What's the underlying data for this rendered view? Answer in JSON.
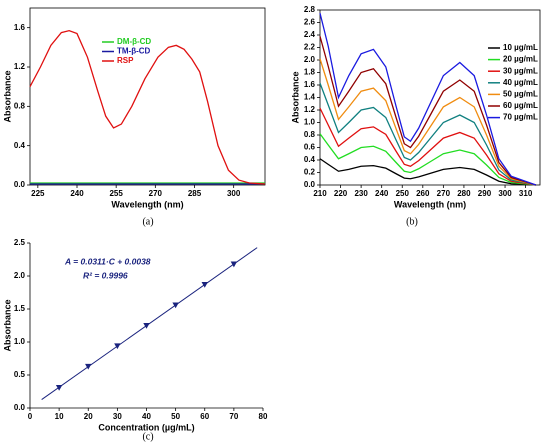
{
  "chart_data": [
    {
      "type": "line",
      "caption": "(a)",
      "xlabel": "Wavelength (nm)",
      "ylabel": "Absorbance",
      "xlim": [
        222,
        312
      ],
      "xticks": [
        225,
        240,
        255,
        270,
        285,
        300
      ],
      "ylim": [
        0,
        1.8
      ],
      "yticks": [
        {
          "value": 0,
          "label": "0.0"
        },
        0.4,
        0.8,
        1.2,
        1.6
      ],
      "legend": "upper right",
      "series": [
        {
          "name": "DM-β-CD",
          "color": "#22cc22",
          "x": [
            222,
            312
          ],
          "values": [
            0.02,
            0.02
          ]
        },
        {
          "name": "TM-β-CD",
          "color": "#1a1aa0",
          "x": [
            222,
            312
          ],
          "values": [
            0.01,
            0.01
          ]
        },
        {
          "name": "RSP",
          "color": "#e01010",
          "x": [
            222,
            226,
            230,
            234,
            237,
            240,
            244,
            248,
            251,
            254,
            257,
            261,
            266,
            271,
            275,
            278,
            281,
            284,
            287,
            290,
            294,
            298,
            302,
            306,
            312
          ],
          "values": [
            1.0,
            1.2,
            1.42,
            1.55,
            1.57,
            1.54,
            1.3,
            0.95,
            0.7,
            0.58,
            0.62,
            0.8,
            1.08,
            1.3,
            1.4,
            1.42,
            1.38,
            1.28,
            1.15,
            0.85,
            0.4,
            0.15,
            0.05,
            0.02,
            0.01
          ]
        }
      ]
    },
    {
      "type": "line",
      "caption": "(b)",
      "xlabel": "Wavelength (nm)",
      "ylabel": "Absorbance",
      "xlim": [
        210,
        317
      ],
      "xticks": [
        210,
        220,
        230,
        240,
        250,
        260,
        270,
        280,
        290,
        300,
        310
      ],
      "ylim": [
        0,
        2.8
      ],
      "yticks": [
        {
          "value": 0,
          "label": "0.0"
        },
        0.2,
        0.4,
        0.6,
        0.8,
        {
          "value": 1,
          "label": "1.0"
        },
        1.2,
        1.4,
        1.6,
        1.8,
        {
          "value": 2,
          "label": "2.0"
        },
        2.2,
        2.4,
        2.6,
        2.8
      ],
      "legend": "right",
      "x": [
        210,
        214,
        219,
        224,
        230,
        236,
        242,
        247,
        251,
        254,
        258,
        264,
        270,
        278,
        285,
        291,
        297,
        303,
        315
      ],
      "series": [
        {
          "name": "10 µg/mL",
          "color": "#000000",
          "values": [
            0.42,
            0.33,
            0.22,
            0.25,
            0.3,
            0.31,
            0.27,
            0.18,
            0.11,
            0.1,
            0.13,
            0.19,
            0.25,
            0.28,
            0.25,
            0.16,
            0.06,
            0.02,
            0.0
          ]
        },
        {
          "name": "20 µg/mL",
          "color": "#22dd22",
          "values": [
            0.82,
            0.64,
            0.42,
            0.5,
            0.6,
            0.62,
            0.54,
            0.36,
            0.22,
            0.2,
            0.26,
            0.38,
            0.5,
            0.56,
            0.5,
            0.32,
            0.12,
            0.04,
            0.0
          ]
        },
        {
          "name": "30 µg/mL",
          "color": "#e01010",
          "values": [
            1.23,
            0.96,
            0.62,
            0.75,
            0.9,
            0.93,
            0.81,
            0.54,
            0.33,
            0.3,
            0.39,
            0.57,
            0.75,
            0.84,
            0.75,
            0.48,
            0.18,
            0.06,
            0.0
          ]
        },
        {
          "name": "40 µg/mL",
          "color": "#108080",
          "values": [
            1.63,
            1.28,
            0.84,
            1.0,
            1.2,
            1.24,
            1.08,
            0.72,
            0.44,
            0.4,
            0.52,
            0.76,
            1.0,
            1.12,
            1.0,
            0.64,
            0.24,
            0.08,
            0.0
          ]
        },
        {
          "name": "50 µg/mL",
          "color": "#f08c10",
          "values": [
            2.02,
            1.6,
            1.05,
            1.25,
            1.5,
            1.55,
            1.35,
            0.9,
            0.55,
            0.5,
            0.65,
            0.95,
            1.25,
            1.4,
            1.25,
            0.8,
            0.3,
            0.1,
            0.0
          ]
        },
        {
          "name": "60 µg/mL",
          "color": "#900000",
          "values": [
            2.38,
            1.9,
            1.26,
            1.5,
            1.8,
            1.86,
            1.62,
            1.08,
            0.66,
            0.6,
            0.78,
            1.14,
            1.5,
            1.68,
            1.5,
            0.96,
            0.36,
            0.12,
            0.0
          ]
        },
        {
          "name": "70 µg/mL",
          "color": "#1a1ae0",
          "values": [
            2.75,
            2.22,
            1.4,
            1.75,
            2.1,
            2.17,
            1.89,
            1.26,
            0.77,
            0.7,
            0.91,
            1.33,
            1.75,
            1.96,
            1.75,
            1.12,
            0.42,
            0.14,
            0.0
          ]
        }
      ]
    },
    {
      "type": "scatter",
      "caption": "(c)",
      "xlabel": "Concentration (µg/mL)",
      "ylabel": "Absorbance",
      "xlim": [
        0,
        80
      ],
      "xticks": [
        0,
        10,
        20,
        30,
        40,
        50,
        60,
        70,
        80
      ],
      "ylim": [
        0,
        2.5
      ],
      "yticks": [
        {
          "value": 0,
          "label": "0.0"
        },
        0.5,
        {
          "value": 1,
          "label": "1.0"
        },
        1.5,
        {
          "value": 2,
          "label": "2.0"
        },
        2.5
      ],
      "annotations": [
        "A = 0.0311·C + 0.0038",
        "R² = 0.9996"
      ],
      "color": "#1a237e",
      "x": [
        10,
        20,
        30,
        40,
        50,
        60,
        70
      ],
      "values": [
        0.31,
        0.63,
        0.94,
        1.25,
        1.56,
        1.87,
        2.18
      ],
      "fit_line": {
        "x": [
          4,
          78
        ],
        "values": [
          0.128,
          2.43
        ]
      }
    }
  ]
}
